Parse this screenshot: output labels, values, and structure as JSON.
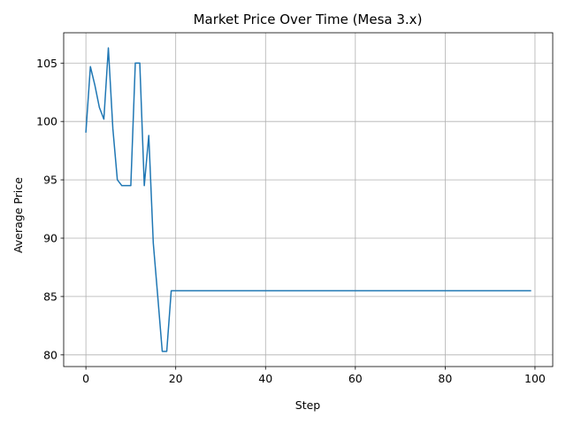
{
  "chart_data": {
    "type": "line",
    "title": "Market Price Over Time (Mesa 3.x)",
    "xlabel": "Step",
    "ylabel": "Average Price",
    "xlim": [
      -4.95,
      103.95
    ],
    "ylim": [
      79.0,
      107.6
    ],
    "xticks": [
      0,
      20,
      40,
      60,
      80,
      100
    ],
    "yticks": [
      80,
      85,
      90,
      95,
      100,
      105
    ],
    "grid": true,
    "line_color": "#1f77b4",
    "series": [
      {
        "x": [
          0,
          1,
          2,
          3,
          4,
          5,
          6,
          7,
          8,
          9,
          10,
          11,
          12,
          13,
          14,
          15,
          16,
          17,
          18,
          19,
          20,
          99
        ],
        "values": [
          99.1,
          104.7,
          103.1,
          101.2,
          100.2,
          106.3,
          99.4,
          95.0,
          94.5,
          94.5,
          94.5,
          105.0,
          105.0,
          94.5,
          98.8,
          89.6,
          85.0,
          80.3,
          80.3,
          85.5,
          85.5,
          85.5
        ]
      }
    ]
  }
}
